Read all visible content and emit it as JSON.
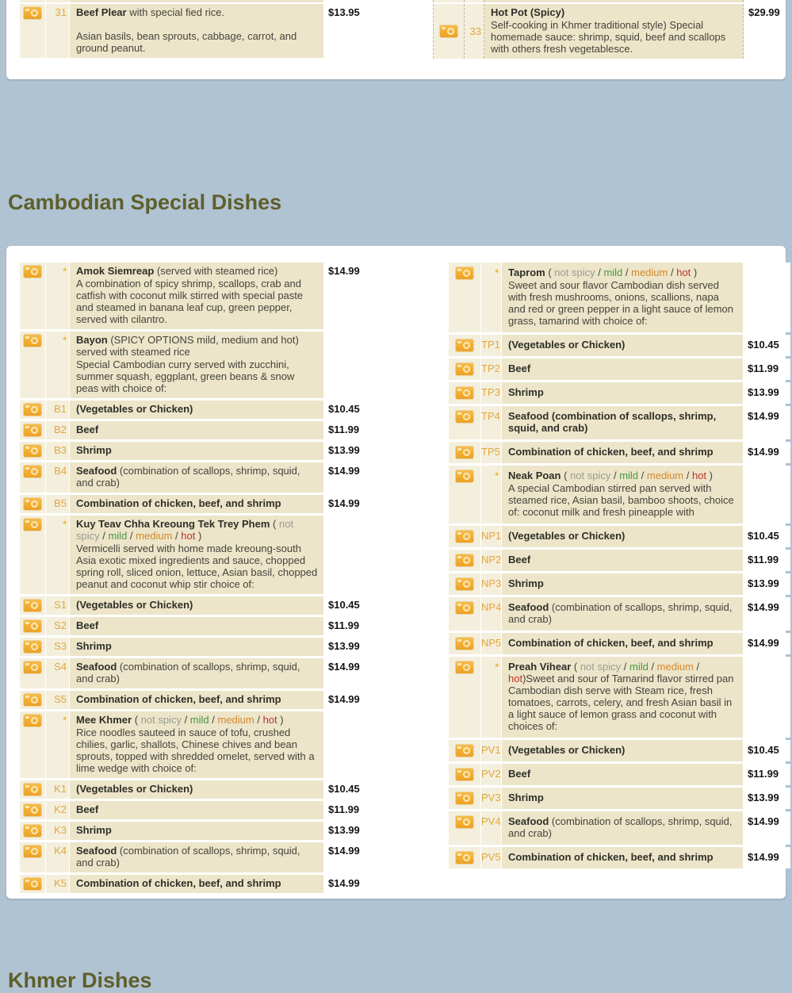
{
  "theme": {
    "page_bg": "#b0c3d3",
    "panel_bg": "#ffffff",
    "row_bg": "#ece5c9",
    "cell_bg": "#f4efdd",
    "accent_amber": "#e2a63d",
    "heading_olive": "#5f5f2b",
    "not_spicy_color": "#999b94",
    "mild_color": "#48973f",
    "medium_color": "#d4882c",
    "hot_color": "#bb342a",
    "spicy_red": "#e03a2f"
  },
  "section_heading": "Cambodian Special Dishes",
  "bottom_heading": "Khmer Dishes",
  "camera_icon": "camera-icon",
  "top_panel": {
    "left": {
      "rows": [
        {
          "sliver": true
        },
        {
          "code": "31",
          "title": [
            {
              "t": "Beef Plear",
              "b": 1
            },
            {
              "t": " with special fied rice."
            }
          ],
          "desc": "Asian basils, bean sprouts, cabbage, carrot, and ground peanut.",
          "gap": true,
          "price": "$13.95"
        }
      ]
    },
    "right": {
      "rows": [
        {
          "sliver": true
        },
        {
          "code": "33",
          "center": true,
          "title": [
            {
              "t": "Hot Pot (",
              "b": 1
            },
            {
              "t": "Spicy",
              "b": 1,
              "c": "spicy"
            },
            {
              "t": ")",
              "b": 1
            }
          ],
          "desc": "Self-cooking in Khmer traditional style) Special homemade sauce: shrimp, squid, beef and scallops with others fresh vegetablesce.",
          "price": "$29.99"
        }
      ]
    }
  },
  "menu": {
    "left": {
      "rows": [
        {
          "star": true,
          "title": [
            {
              "t": "Amok Siemreap",
              "b": 1
            },
            {
              "t": " (served with steamed rice)"
            }
          ],
          "desc": "A combination of spicy shrimp, scallops, crab and catfish with coconut milk stirred with special paste and steamed in banana leaf cup, green pepper, served with cilantro.",
          "price": "$14.99"
        },
        {
          "star": true,
          "title": [
            {
              "t": "Bayon",
              "b": 1
            },
            {
              "t": " (SPICY OPTIONS mild, medium and hot) served with steamed rice"
            }
          ],
          "desc": "Special Cambodian curry served with zucchini, summer squash, eggplant, green beans & snow peas with choice of:"
        },
        {
          "code": "B1",
          "title": [
            {
              "t": "(Vegetables or Chicken)",
              "b": 1
            }
          ],
          "price": "$10.45"
        },
        {
          "code": "B2",
          "title": [
            {
              "t": "Beef",
              "b": 1
            }
          ],
          "price": "$11.99"
        },
        {
          "code": "B3",
          "title": [
            {
              "t": "Shrimp",
              "b": 1
            }
          ],
          "price": "$13.99"
        },
        {
          "code": "B4",
          "title": [
            {
              "t": "Seafood",
              "b": 1
            },
            {
              "t": " (combination of scallops, shrimp, squid, and crab)"
            }
          ],
          "price": "$14.99"
        },
        {
          "code": "B5",
          "title": [
            {
              "t": "Combination of chicken, beef, and shrimp",
              "b": 1
            }
          ],
          "price": "$14.99"
        },
        {
          "star": true,
          "title": [
            {
              "t": "Kuy Teav Chha Kreoung Tek Trey Phem",
              "b": 1
            },
            {
              "t": " ( "
            },
            {
              "t": "not spicy",
              "c": "ns"
            },
            {
              "t": " / "
            },
            {
              "t": "mild",
              "c": "mild"
            },
            {
              "t": " / "
            },
            {
              "t": "medium",
              "c": "med"
            },
            {
              "t": " / "
            },
            {
              "t": "hot",
              "c": "hot"
            },
            {
              "t": " )"
            }
          ],
          "desc": "Vermicelli served with home made kreoung-south Asia exotic mixed ingredients and sauce, chopped spring roll, sliced onion, lettuce, Asian basil, chopped peanut and coconut whip stir choice of:"
        },
        {
          "code": "S1",
          "title": [
            {
              "t": "(Vegetables or Chicken)",
              "b": 1
            }
          ],
          "price": "$10.45"
        },
        {
          "code": "S2",
          "title": [
            {
              "t": "Beef",
              "b": 1
            }
          ],
          "price": "$11.99"
        },
        {
          "code": "S3",
          "title": [
            {
              "t": "Shrimp",
              "b": 1
            }
          ],
          "price": "$13.99"
        },
        {
          "code": "S4",
          "title": [
            {
              "t": "Seafood",
              "b": 1
            },
            {
              "t": " (combination of scallops, shrimp, squid, and crab)"
            }
          ],
          "price": "$14.99"
        },
        {
          "code": "S5",
          "title": [
            {
              "t": "Combination of chicken, beef, and shrimp",
              "b": 1
            }
          ],
          "price": "$14.99"
        },
        {
          "star": true,
          "title": [
            {
              "t": "Mee Khmer",
              "b": 1
            },
            {
              "t": " ( "
            },
            {
              "t": "not spicy",
              "c": "ns"
            },
            {
              "t": " / "
            },
            {
              "t": "mild",
              "c": "mild"
            },
            {
              "t": " / "
            },
            {
              "t": "medium",
              "c": "med"
            },
            {
              "t": " / "
            },
            {
              "t": "hot",
              "c": "hot"
            },
            {
              "t": " )"
            }
          ],
          "desc": "Rice noodles sauteed in sauce of tofu, crushed chilies, garlic, shallots, Chinese chives and bean sprouts, topped with shredded omelet, served with a lime wedge with choice of:"
        },
        {
          "code": "K1",
          "title": [
            {
              "t": "(Vegetables or Chicken)",
              "b": 1
            }
          ],
          "price": "$10.45"
        },
        {
          "code": "K2",
          "title": [
            {
              "t": "Beef",
              "b": 1
            }
          ],
          "price": "$11.99"
        },
        {
          "code": "K3",
          "title": [
            {
              "t": "Shrimp",
              "b": 1
            }
          ],
          "price": "$13.99"
        },
        {
          "code": "K4",
          "title": [
            {
              "t": "Seafood",
              "b": 1
            },
            {
              "t": " (combination of scallops, shrimp, squid, and crab)"
            }
          ],
          "price": "$14.99"
        },
        {
          "code": "K5",
          "title": [
            {
              "t": "Combination of chicken, beef, and shrimp",
              "b": 1
            }
          ],
          "price": "$14.99"
        }
      ]
    },
    "right": {
      "rows": [
        {
          "star": true,
          "title": [
            {
              "t": "Taprom",
              "b": 1
            },
            {
              "t": " ( "
            },
            {
              "t": "not spicy",
              "c": "ns"
            },
            {
              "t": " / "
            },
            {
              "t": "mild",
              "c": "mild"
            },
            {
              "t": " / "
            },
            {
              "t": "medium",
              "c": "med"
            },
            {
              "t": " / "
            },
            {
              "t": "hot",
              "c": "hot"
            },
            {
              "t": " )"
            }
          ],
          "desc": "Sweet and sour flavor Cambodian dish served with fresh mushrooms, onions, scallions, napa and red or green pepper in a light sauce of lemon grass, tamarind with choice of:"
        },
        {
          "code": "TP1",
          "title": [
            {
              "t": "(Vegetables or Chicken)",
              "b": 1
            }
          ],
          "price": "$10.45"
        },
        {
          "code": "TP2",
          "title": [
            {
              "t": "Beef",
              "b": 1
            }
          ],
          "price": "$11.99"
        },
        {
          "code": "TP3",
          "title": [
            {
              "t": "Shrimp",
              "b": 1
            }
          ],
          "price": "$13.99"
        },
        {
          "code": "TP4",
          "title": [
            {
              "t": "Seafood (combination of scallops, shrimp, squid, and crab)",
              "b": 1
            }
          ],
          "price": "$14.99"
        },
        {
          "code": "TP5",
          "title": [
            {
              "t": "Combination of chicken, beef, and shrimp",
              "b": 1
            }
          ],
          "price": "$14.99"
        },
        {
          "star": true,
          "title": [
            {
              "t": "Neak Poan",
              "b": 1
            },
            {
              "t": " ( "
            },
            {
              "t": "not spicy",
              "c": "ns"
            },
            {
              "t": " / "
            },
            {
              "t": "mild",
              "c": "mild"
            },
            {
              "t": " / "
            },
            {
              "t": "medium",
              "c": "med"
            },
            {
              "t": " / "
            },
            {
              "t": "hot",
              "c": "hot"
            },
            {
              "t": " )"
            }
          ],
          "desc": "A special Cambodian stirred pan served with steamed rice, Asian basil, bamboo shoots, choice of: coconut milk and fresh pineapple with"
        },
        {
          "code": "NP1",
          "title": [
            {
              "t": "(Vegetables or Chicken)",
              "b": 1
            }
          ],
          "price": "$10.45"
        },
        {
          "code": "NP2",
          "title": [
            {
              "t": "Beef",
              "b": 1
            }
          ],
          "price": "$11.99"
        },
        {
          "code": "NP3",
          "title": [
            {
              "t": "Shrimp",
              "b": 1
            }
          ],
          "price": "$13.99"
        },
        {
          "code": "NP4",
          "title": [
            {
              "t": "Seafood",
              "b": 1
            },
            {
              "t": " (combination of scallops, shrimp, squid, and crab)"
            }
          ],
          "price": "$14.99"
        },
        {
          "code": "NP5",
          "title": [
            {
              "t": "Combination of chicken, beef, and shrimp",
              "b": 1
            }
          ],
          "price": "$14.99"
        },
        {
          "star": true,
          "title": [
            {
              "t": "Preah Vihear",
              "b": 1
            },
            {
              "t": "   ( "
            },
            {
              "t": "not spicy",
              "c": "ns"
            },
            {
              "t": " / "
            },
            {
              "t": "mild",
              "c": "mild"
            },
            {
              "t": " / "
            },
            {
              "t": "medium",
              "c": "med"
            },
            {
              "t": " / "
            },
            {
              "t": "hot",
              "c": "hot"
            },
            {
              "t": ")Sweet and sour of Tamarind flavor stirred pan Cambodian dish serve with Steam rice, fresh tomatoes, carrots, celery, and fresh Asian basil in a light sauce of lemon grass and coconut with choices of:"
            }
          ]
        },
        {
          "code": "PV1",
          "title": [
            {
              "t": "(Vegetables or Chicken)",
              "b": 1
            }
          ],
          "price": "$10.45"
        },
        {
          "code": "PV2",
          "title": [
            {
              "t": "Beef",
              "b": 1
            }
          ],
          "price": "$11.99"
        },
        {
          "code": "PV3",
          "title": [
            {
              "t": "Shrimp",
              "b": 1
            }
          ],
          "price": "$13.99"
        },
        {
          "code": "PV4",
          "title": [
            {
              "t": "Seafood",
              "b": 1
            },
            {
              "t": " (combination of scallops, shrimp, squid, and crab)"
            }
          ],
          "price": "$14.99"
        },
        {
          "code": "PV5",
          "title": [
            {
              "t": "Combination of chicken, beef, and shrimp",
              "b": 1
            }
          ],
          "price": "$14.99"
        }
      ]
    }
  }
}
